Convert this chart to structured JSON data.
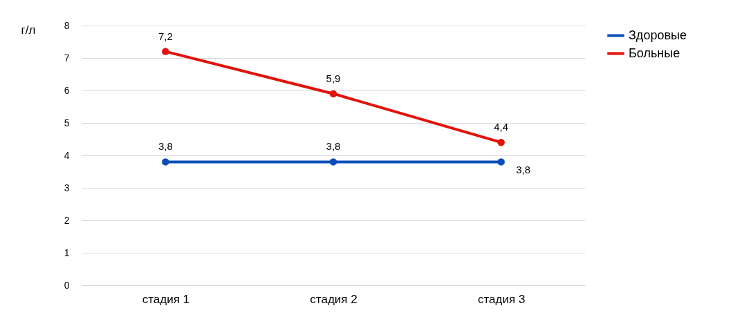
{
  "chart_data": {
    "type": "line",
    "ylabel": "г/л",
    "categories": [
      "стадия 1",
      "стадия 2",
      "стадия 3"
    ],
    "series": [
      {
        "name": "Здоровые",
        "color": "#0a4fb8",
        "values": [
          3.8,
          3.8,
          3.8
        ],
        "value_labels": [
          "3,8",
          "3,8",
          "3,8"
        ]
      },
      {
        "name": "Больные",
        "color": "#e3120b",
        "values": [
          7.2,
          5.9,
          4.4
        ],
        "value_labels": [
          "7,2",
          "5,9",
          "4,4"
        ]
      }
    ],
    "ylim": [
      0,
      8
    ],
    "yticks": [
      0,
      1,
      2,
      3,
      4,
      5,
      6,
      7,
      8
    ],
    "grid": "y",
    "legend": "right",
    "marker": "circle",
    "line_style": "solid"
  }
}
